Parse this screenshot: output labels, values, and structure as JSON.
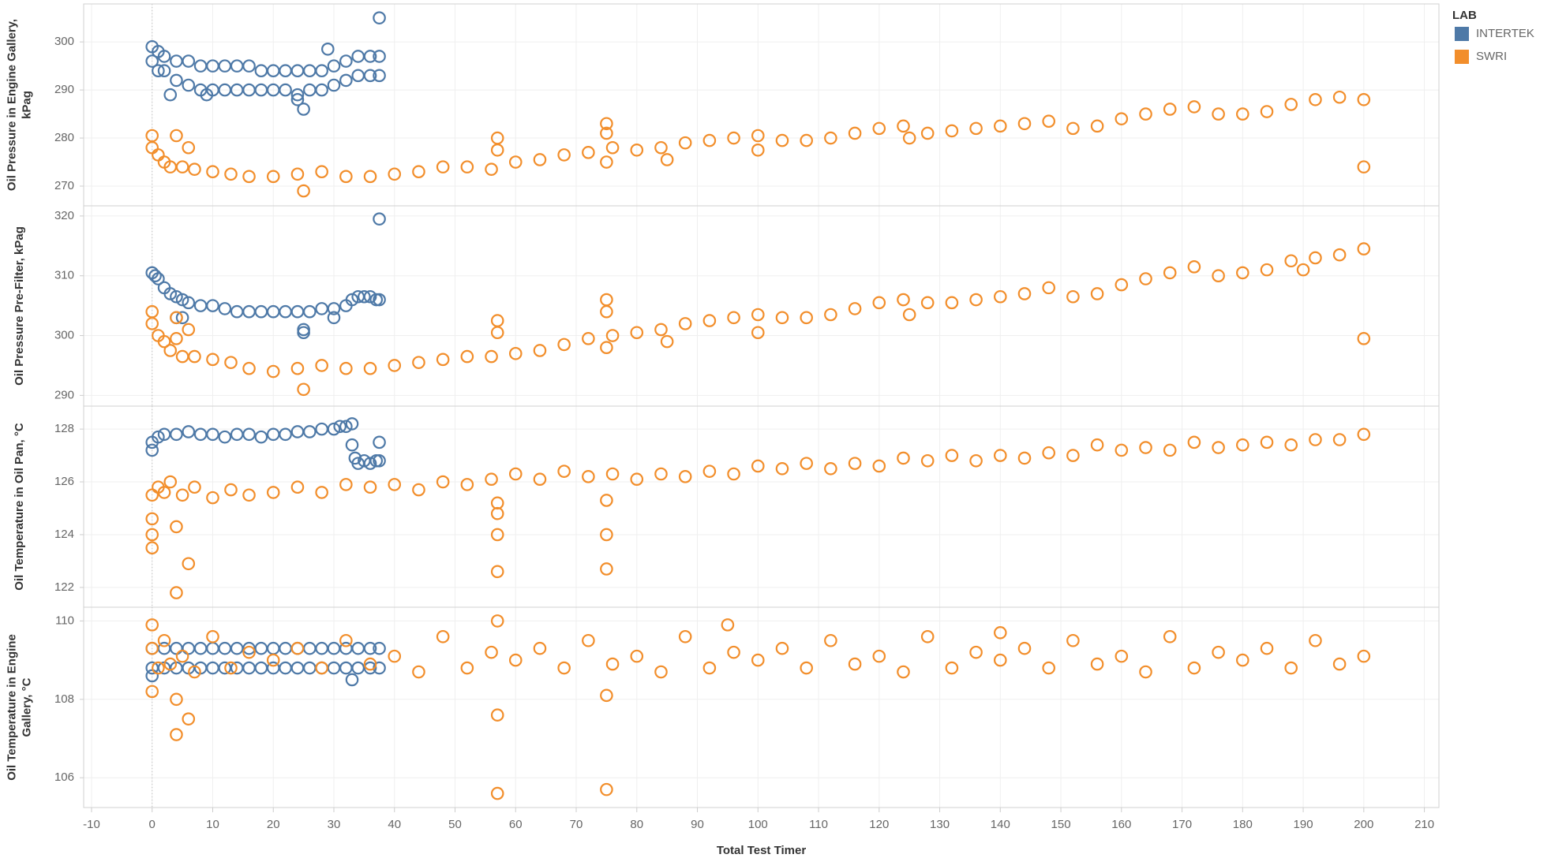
{
  "chart_data": {
    "type": "scatter",
    "xlabel": "Total Test Timer",
    "xlim": [
      -11.3,
      212.4
    ],
    "xticks": [
      -10,
      0,
      10,
      20,
      30,
      40,
      50,
      60,
      70,
      80,
      90,
      100,
      110,
      120,
      130,
      140,
      150,
      160,
      170,
      180,
      190,
      200,
      210
    ],
    "legend_title": "LAB",
    "series": [
      {
        "name": "INTERTEK",
        "color": "#4e79a7"
      },
      {
        "name": "SWRI",
        "color": "#f28e2b"
      }
    ],
    "grid": true,
    "panels": [
      {
        "ylabel": [
          "Oil Pressure in Engine Gallery,",
          "kPag"
        ],
        "ylim": [
          265.9,
          307.9
        ],
        "yticks": [
          270,
          280,
          290,
          300
        ],
        "data": [
          {
            "x": [
              0,
              0,
              1,
              1,
              2,
              2,
              4,
              4,
              6,
              6,
              8,
              8,
              10,
              10,
              12,
              12,
              14,
              14,
              16,
              16,
              18,
              18,
              20,
              20,
              22,
              22,
              24,
              24,
              26,
              26,
              28,
              28,
              30,
              30,
              32,
              32,
              34,
              34,
              36,
              36,
              37.5,
              37.5,
              25,
              37.5,
              3,
              9,
              29,
              24
            ],
            "y": [
              299,
              296,
              298,
              294,
              297,
              294,
              296,
              292,
              296,
              291,
              295,
              290,
              295,
              290,
              295,
              290,
              295,
              290,
              295,
              290,
              294,
              290,
              294,
              290,
              294,
              290,
              294,
              289,
              294,
              290,
              294,
              290,
              295,
              291,
              296,
              292,
              297,
              293,
              297,
              293,
              297,
              293,
              286,
              305,
              289,
              289,
              298.5,
              288
            ]
          },
          {
            "x": [
              0,
              1,
              2,
              3,
              5,
              7,
              10,
              13,
              16,
              20,
              24,
              28,
              32,
              36,
              40,
              44,
              48,
              52,
              56,
              60,
              64,
              68,
              72,
              76,
              80,
              84,
              88,
              92,
              96,
              100,
              104,
              108,
              112,
              116,
              120,
              124,
              128,
              132,
              136,
              140,
              144,
              148,
              152,
              156,
              160,
              164,
              168,
              172,
              176,
              180,
              184,
              188,
              192,
              196,
              200,
              0,
              4,
              6,
              25,
              57,
              57,
              75,
              75,
              75,
              85,
              100,
              125,
              200
            ],
            "y": [
              278,
              276.5,
              275,
              274,
              274,
              273.5,
              273,
              272.5,
              272,
              272,
              272.5,
              273,
              272,
              272,
              272.5,
              273,
              274,
              274,
              273.5,
              275,
              275.5,
              276.5,
              277,
              278,
              277.5,
              278,
              279,
              279.5,
              280,
              280.5,
              279.5,
              279.5,
              280,
              281,
              282,
              282.5,
              281,
              281.5,
              282,
              282.5,
              283,
              283.5,
              282,
              282.5,
              284,
              285,
              286,
              286.5,
              285,
              285,
              285.5,
              287,
              288,
              288.5,
              288,
              280.5,
              280.5,
              278,
              269,
              280,
              277.5,
              283,
              281,
              275,
              275.5,
              277.5,
              280,
              274
            ]
          }
        ]
      },
      {
        "ylabel": [
          "Oil Pressure Pre-Filter, kPag"
        ],
        "ylim": [
          288.2,
          321.7
        ],
        "yticks": [
          290,
          300,
          310,
          320
        ],
        "data": [
          {
            "x": [
              0,
              0.5,
              1,
              2,
              3,
              4,
              5,
              6,
              8,
              10,
              12,
              14,
              16,
              18,
              20,
              22,
              24,
              26,
              28,
              30,
              32,
              33,
              34,
              35,
              36,
              37,
              37.5,
              37.5,
              25,
              25,
              30,
              4,
              5
            ],
            "y": [
              310.5,
              310,
              309.5,
              308,
              307,
              306.5,
              306,
              305.5,
              305,
              305,
              304.5,
              304,
              304,
              304,
              304,
              304,
              304,
              304,
              304.5,
              304.5,
              305,
              306,
              306.5,
              306.5,
              306.5,
              306,
              306,
              319.5,
              300.5,
              301,
              303,
              303,
              303
            ]
          },
          {
            "x": [
              0,
              1,
              2,
              3,
              5,
              7,
              10,
              13,
              16,
              20,
              24,
              28,
              32,
              36,
              40,
              44,
              48,
              52,
              56,
              60,
              64,
              68,
              72,
              76,
              80,
              84,
              88,
              92,
              96,
              100,
              104,
              108,
              112,
              116,
              120,
              124,
              128,
              132,
              136,
              140,
              144,
              148,
              152,
              156,
              160,
              164,
              168,
              172,
              176,
              180,
              184,
              188,
              192,
              196,
              200,
              0,
              4,
              6,
              4,
              25,
              57,
              57,
              75,
              75,
              75,
              85,
              100,
              125,
              190,
              200
            ],
            "y": [
              302,
              300,
              299,
              297.5,
              296.5,
              296.5,
              296,
              295.5,
              294.5,
              294,
              294.5,
              295,
              294.5,
              294.5,
              295,
              295.5,
              296,
              296.5,
              296.5,
              297,
              297.5,
              298.5,
              299.5,
              300,
              300.5,
              301,
              302,
              302.5,
              303,
              303.5,
              303,
              303,
              303.5,
              304.5,
              305.5,
              306,
              305.5,
              305.5,
              306,
              306.5,
              307,
              308,
              306.5,
              307,
              308.5,
              309.5,
              310.5,
              311.5,
              310,
              310.5,
              311,
              312.5,
              313,
              313.5,
              314.5,
              304,
              303,
              301,
              299.5,
              291,
              302.5,
              300.5,
              306,
              304,
              298,
              299,
              300.5,
              303.5,
              311,
              299.5
            ]
          }
        ]
      },
      {
        "ylabel": [
          "Oil Temperature in Oil Pan, °C"
        ],
        "ylim": [
          121.25,
          128.87
        ],
        "yticks": [
          122,
          124,
          126,
          128
        ],
        "data": [
          {
            "x": [
              0,
              1,
              2,
              4,
              6,
              8,
              10,
              12,
              14,
              16,
              18,
              20,
              22,
              24,
              26,
              28,
              30,
              31,
              32,
              33,
              33.5,
              34,
              35,
              36,
              37,
              37.5,
              0,
              33,
              37.5
            ],
            "y": [
              127.5,
              127.7,
              127.8,
              127.8,
              127.9,
              127.8,
              127.8,
              127.7,
              127.8,
              127.8,
              127.7,
              127.8,
              127.8,
              127.9,
              127.9,
              128,
              128,
              128.1,
              128.1,
              128.2,
              126.9,
              126.7,
              126.8,
              126.7,
              126.8,
              126.8,
              127.2,
              127.4,
              127.5
            ]
          },
          {
            "x": [
              0,
              1,
              2,
              3,
              5,
              7,
              10,
              13,
              16,
              20,
              24,
              28,
              32,
              36,
              40,
              44,
              48,
              52,
              56,
              60,
              64,
              68,
              72,
              76,
              80,
              84,
              88,
              92,
              96,
              100,
              104,
              108,
              112,
              116,
              120,
              124,
              128,
              132,
              136,
              140,
              144,
              148,
              152,
              156,
              160,
              164,
              168,
              172,
              176,
              180,
              184,
              188,
              192,
              196,
              200,
              57,
              57,
              0,
              0,
              0,
              4,
              4,
              6,
              57,
              57,
              75,
              75,
              75
            ],
            "y": [
              125.5,
              125.8,
              125.6,
              126,
              125.5,
              125.8,
              125.4,
              125.7,
              125.5,
              125.6,
              125.8,
              125.6,
              125.9,
              125.8,
              125.9,
              125.7,
              126,
              125.9,
              126.1,
              126.3,
              126.1,
              126.4,
              126.2,
              126.3,
              126.1,
              126.3,
              126.2,
              126.4,
              126.3,
              126.6,
              126.5,
              126.7,
              126.5,
              126.7,
              126.6,
              126.9,
              126.8,
              127,
              126.8,
              127,
              126.9,
              127.1,
              127,
              127.4,
              127.2,
              127.3,
              127.2,
              127.5,
              127.3,
              127.4,
              127.5,
              127.4,
              127.6,
              127.6,
              127.8,
              124.8,
              125.2,
              123.5,
              124,
              124.6,
              124.3,
              121.8,
              122.9,
              124,
              122.6,
              125.3,
              124,
              122.7
            ]
          }
        ]
      },
      {
        "ylabel": [
          "Oil Temperature in Engine",
          "Gallery, °C"
        ],
        "ylim": [
          105.24,
          110.35
        ],
        "yticks": [
          106,
          108,
          110
        ],
        "data": [
          {
            "x": [
              0,
              0,
              2,
              2,
              4,
              4,
              6,
              6,
              8,
              8,
              10,
              10,
              12,
              12,
              14,
              14,
              16,
              16,
              18,
              18,
              20,
              20,
              22,
              22,
              24,
              24,
              26,
              26,
              28,
              28,
              30,
              30,
              32,
              32,
              34,
              34,
              36,
              36,
              37.5,
              37.5,
              0,
              33
            ],
            "y": [
              109.3,
              108.8,
              109.3,
              108.8,
              109.3,
              108.8,
              109.3,
              108.8,
              109.3,
              108.8,
              109.3,
              108.8,
              109.3,
              108.8,
              109.3,
              108.8,
              109.3,
              108.8,
              109.3,
              108.8,
              109.3,
              108.8,
              109.3,
              108.8,
              109.3,
              108.8,
              109.3,
              108.8,
              109.3,
              108.8,
              109.3,
              108.8,
              109.3,
              108.8,
              109.3,
              108.8,
              109.3,
              108.8,
              109.3,
              108.8,
              108.6,
              108.5
            ]
          },
          {
            "x": [
              0,
              1,
              2,
              3,
              5,
              7,
              10,
              13,
              16,
              20,
              24,
              28,
              32,
              36,
              40,
              44,
              48,
              52,
              56,
              60,
              64,
              68,
              72,
              76,
              80,
              84,
              88,
              92,
              96,
              100,
              104,
              108,
              112,
              116,
              120,
              124,
              128,
              132,
              136,
              140,
              144,
              148,
              152,
              156,
              160,
              164,
              168,
              172,
              176,
              180,
              184,
              188,
              192,
              196,
              200,
              0,
              0,
              4,
              6,
              4,
              57,
              57,
              75,
              75,
              95,
              140,
              57
            ],
            "y": [
              109.3,
              108.8,
              109.5,
              108.9,
              109.1,
              108.7,
              109.6,
              108.8,
              109.2,
              109.0,
              109.3,
              108.8,
              109.5,
              108.9,
              109.1,
              108.7,
              109.6,
              108.8,
              109.2,
              109.0,
              109.3,
              108.8,
              109.5,
              108.9,
              109.1,
              108.7,
              109.6,
              108.8,
              109.2,
              109.0,
              109.3,
              108.8,
              109.5,
              108.9,
              109.1,
              108.7,
              109.6,
              108.8,
              109.2,
              109.0,
              109.3,
              108.8,
              109.5,
              108.9,
              109.1,
              108.7,
              109.6,
              108.8,
              109.2,
              109.0,
              109.3,
              108.8,
              109.5,
              108.9,
              109.1,
              109.9,
              108.2,
              107.1,
              107.5,
              108,
              107.6,
              105.6,
              108.1,
              105.7,
              109.9,
              109.7,
              110
            ]
          }
        ]
      }
    ]
  }
}
